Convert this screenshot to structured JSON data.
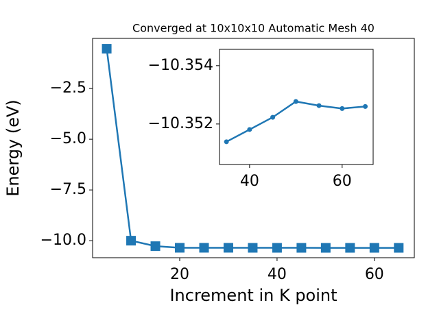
{
  "chart_data": [
    {
      "type": "line",
      "title": "Converged at 10x10x10 Automatic Mesh 40",
      "xlabel": "Increment in K point",
      "ylabel": "Energy (eV)",
      "x": [
        5,
        10,
        15,
        20,
        25,
        30,
        35,
        40,
        45,
        50,
        55,
        60,
        65
      ],
      "series": [
        {
          "name": "Energy",
          "color": "#1f77b4",
          "marker": "square",
          "values": [
            -0.54,
            -10.0,
            -10.27,
            -10.35,
            -10.35,
            -10.35,
            -10.3514,
            -10.3518,
            -10.3522,
            -10.3528,
            -10.3526,
            -10.3525,
            -10.3526
          ]
        }
      ],
      "xlim": [
        2.1,
        68.2
      ],
      "ylim": [
        -10.84,
        -0.03
      ],
      "xticks": [
        20,
        40,
        60
      ],
      "yticks": [
        {
          "value": -2.5,
          "label": "−2.5"
        },
        {
          "value": -5.0,
          "label": "−5.0"
        },
        {
          "value": -7.5,
          "label": "−7.5"
        },
        {
          "value": -10.0,
          "label": "−10.0"
        }
      ]
    },
    {
      "type": "line",
      "x": [
        35,
        40,
        45,
        50,
        55,
        60,
        65
      ],
      "series": [
        {
          "name": "Energy",
          "color": "#1f77b4",
          "marker": "circle",
          "values": [
            -10.35139,
            -10.35181,
            -10.35223,
            -10.35277,
            -10.35263,
            -10.35253,
            -10.3526
          ]
        }
      ],
      "xlim": [
        33.5,
        66.7
      ],
      "ylim": [
        -10.35061,
        -10.35456
      ],
      "xticks": [
        40,
        60
      ],
      "yticks": [
        {
          "value": -10.354,
          "label": "−10.354"
        },
        {
          "value": -10.352,
          "label": "−10.352"
        }
      ]
    }
  ]
}
